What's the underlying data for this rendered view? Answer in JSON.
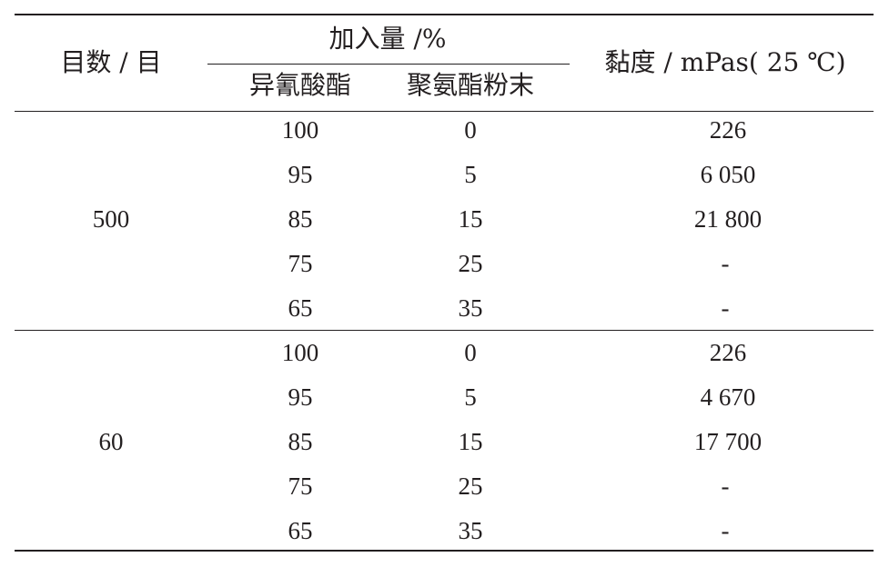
{
  "table": {
    "header": {
      "mesh": "目数 / 目",
      "addition": "加入量 /%",
      "isocyanate": "异氰酸酯",
      "pu_powder": "聚氨酯粉末",
      "viscosity": "黏度 / mPas( 25 ℃)"
    },
    "groups": [
      {
        "mesh": "500",
        "rows": [
          {
            "isocyanate": "100",
            "pu_powder": "0",
            "viscosity": "226"
          },
          {
            "isocyanate": "95",
            "pu_powder": "5",
            "viscosity": "6 050"
          },
          {
            "isocyanate": "85",
            "pu_powder": "15",
            "viscosity": "21 800"
          },
          {
            "isocyanate": "75",
            "pu_powder": "25",
            "viscosity": "-"
          },
          {
            "isocyanate": "65",
            "pu_powder": "35",
            "viscosity": "-"
          }
        ]
      },
      {
        "mesh": "60",
        "rows": [
          {
            "isocyanate": "100",
            "pu_powder": "0",
            "viscosity": "226"
          },
          {
            "isocyanate": "95",
            "pu_powder": "5",
            "viscosity": "4 670"
          },
          {
            "isocyanate": "85",
            "pu_powder": "15",
            "viscosity": "17 700"
          },
          {
            "isocyanate": "75",
            "pu_powder": "25",
            "viscosity": "-"
          },
          {
            "isocyanate": "65",
            "pu_powder": "35",
            "viscosity": "-"
          }
        ]
      }
    ]
  }
}
